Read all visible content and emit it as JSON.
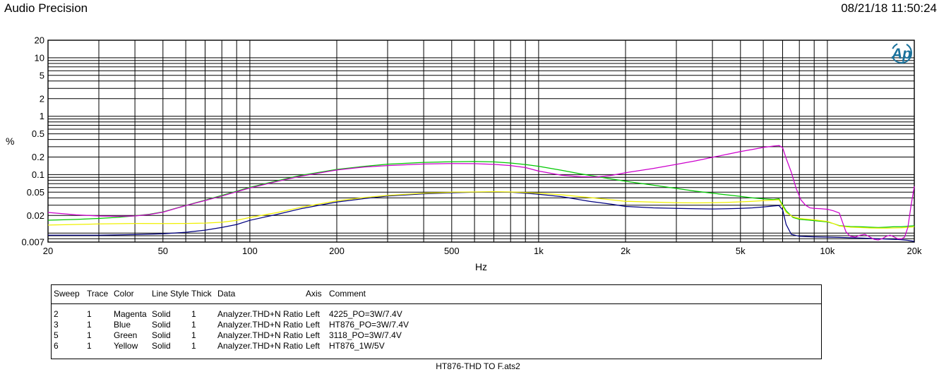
{
  "header": {
    "title": "Audio Precision",
    "timestamp": "08/21/18 11:50:24"
  },
  "footer": {
    "filename": "HT876-THD TO F.ats2"
  },
  "logo": {
    "text": "Ap",
    "color": "#19719b"
  },
  "chart_data": {
    "type": "line",
    "title": "",
    "xlabel": "Hz",
    "ylabel": "%",
    "x_axis": {
      "scale": "log",
      "min": 20,
      "max": 20000,
      "ticks": [
        {
          "v": 20,
          "t": "20"
        },
        {
          "v": 50,
          "t": "50"
        },
        {
          "v": 100,
          "t": "100"
        },
        {
          "v": 200,
          "t": "200"
        },
        {
          "v": 500,
          "t": "500"
        },
        {
          "v": 1000,
          "t": "1k"
        },
        {
          "v": 2000,
          "t": "2k"
        },
        {
          "v": 5000,
          "t": "5k"
        },
        {
          "v": 10000,
          "t": "10k"
        },
        {
          "v": 20000,
          "t": "20k"
        }
      ]
    },
    "y_axis": {
      "scale": "log",
      "min": 0.007,
      "max": 20,
      "ticks": [
        {
          "v": 20,
          "t": "20"
        },
        {
          "v": 10,
          "t": "10"
        },
        {
          "v": 5,
          "t": "5"
        },
        {
          "v": 2,
          "t": "2"
        },
        {
          "v": 1,
          "t": "1"
        },
        {
          "v": 0.5,
          "t": "0.5"
        },
        {
          "v": 0.2,
          "t": "0.2"
        },
        {
          "v": 0.1,
          "t": "0.1"
        },
        {
          "v": 0.05,
          "t": "0.05"
        },
        {
          "v": 0.02,
          "t": "0.02"
        },
        {
          "v": 0.007,
          "t": "0.007"
        }
      ]
    },
    "grid": true,
    "legend_position": "table-below",
    "series": [
      {
        "name": "3118_PO=3W/7.4V",
        "color_name": "Green",
        "hex": "#00c800",
        "points": [
          [
            20,
            0.0166
          ],
          [
            25,
            0.0171
          ],
          [
            30,
            0.0178
          ],
          [
            35,
            0.0186
          ],
          [
            40,
            0.0197
          ],
          [
            45,
            0.021
          ],
          [
            50,
            0.023
          ],
          [
            60,
            0.0297
          ],
          [
            70,
            0.0365
          ],
          [
            80,
            0.044
          ],
          [
            90,
            0.052
          ],
          [
            100,
            0.0605
          ],
          [
            125,
            0.079
          ],
          [
            150,
            0.097
          ],
          [
            175,
            0.11
          ],
          [
            200,
            0.123
          ],
          [
            250,
            0.139
          ],
          [
            300,
            0.151
          ],
          [
            400,
            0.162
          ],
          [
            500,
            0.166
          ],
          [
            600,
            0.168
          ],
          [
            700,
            0.165
          ],
          [
            800,
            0.158
          ],
          [
            900,
            0.149
          ],
          [
            1000,
            0.139
          ],
          [
            1200,
            0.119
          ],
          [
            1400,
            0.103
          ],
          [
            1600,
            0.092
          ],
          [
            1800,
            0.084
          ],
          [
            2000,
            0.077
          ],
          [
            2500,
            0.066
          ],
          [
            3000,
            0.058
          ],
          [
            3500,
            0.052
          ],
          [
            4000,
            0.048
          ],
          [
            4500,
            0.045
          ],
          [
            5000,
            0.0425
          ],
          [
            5500,
            0.04
          ],
          [
            6000,
            0.0385
          ],
          [
            6500,
            0.0375
          ],
          [
            6800,
            0.0385
          ],
          [
            7200,
            0.024
          ],
          [
            7600,
            0.0185
          ],
          [
            8000,
            0.0172
          ],
          [
            9000,
            0.0163
          ],
          [
            10000,
            0.0155
          ],
          [
            10500,
            0.0145
          ],
          [
            11000,
            0.0134
          ],
          [
            12000,
            0.0129
          ],
          [
            13000,
            0.0128
          ],
          [
            14000,
            0.0126
          ],
          [
            15000,
            0.0124
          ],
          [
            16000,
            0.0126
          ],
          [
            17000,
            0.0128
          ],
          [
            18000,
            0.0128
          ],
          [
            19000,
            0.0131
          ],
          [
            20000,
            0.0133
          ]
        ]
      },
      {
        "name": "HT876_PO=3W/7.4V",
        "color_name": "Blue",
        "hex": "#000080",
        "points": [
          [
            20,
            0.0092
          ],
          [
            30,
            0.0092
          ],
          [
            40,
            0.0094
          ],
          [
            50,
            0.0097
          ],
          [
            60,
            0.0103
          ],
          [
            70,
            0.0112
          ],
          [
            80,
            0.0125
          ],
          [
            90,
            0.014
          ],
          [
            100,
            0.0165
          ],
          [
            125,
            0.021
          ],
          [
            150,
            0.026
          ],
          [
            200,
            0.034
          ],
          [
            250,
            0.039
          ],
          [
            300,
            0.043
          ],
          [
            400,
            0.047
          ],
          [
            500,
            0.049
          ],
          [
            600,
            0.05
          ],
          [
            700,
            0.0505
          ],
          [
            800,
            0.05
          ],
          [
            900,
            0.048
          ],
          [
            1000,
            0.046
          ],
          [
            1200,
            0.042
          ],
          [
            1500,
            0.035
          ],
          [
            1800,
            0.031
          ],
          [
            2000,
            0.0285
          ],
          [
            2500,
            0.027
          ],
          [
            3000,
            0.0265
          ],
          [
            3500,
            0.026
          ],
          [
            4000,
            0.0258
          ],
          [
            4500,
            0.026
          ],
          [
            5000,
            0.0265
          ],
          [
            5500,
            0.027
          ],
          [
            6000,
            0.028
          ],
          [
            6500,
            0.029
          ],
          [
            6800,
            0.0295
          ],
          [
            7000,
            0.025
          ],
          [
            7200,
            0.014
          ],
          [
            7500,
            0.0095
          ],
          [
            8000,
            0.0088
          ],
          [
            9000,
            0.0086
          ],
          [
            10000,
            0.0085
          ],
          [
            11000,
            0.0084
          ],
          [
            12000,
            0.0083
          ],
          [
            13000,
            0.0082
          ],
          [
            14000,
            0.0081
          ],
          [
            15000,
            0.008
          ],
          [
            16000,
            0.0079
          ],
          [
            17000,
            0.0078
          ],
          [
            18000,
            0.0077
          ],
          [
            19000,
            0.0075
          ],
          [
            20000,
            0.0072
          ]
        ]
      },
      {
        "name": "HT876_1W/5V",
        "color_name": "Yellow",
        "hex": "#f0f000",
        "points": [
          [
            20,
            0.0137
          ],
          [
            30,
            0.0143
          ],
          [
            40,
            0.0146
          ],
          [
            50,
            0.0145
          ],
          [
            60,
            0.0146
          ],
          [
            70,
            0.0148
          ],
          [
            80,
            0.0153
          ],
          [
            90,
            0.0165
          ],
          [
            100,
            0.0185
          ],
          [
            125,
            0.0225
          ],
          [
            150,
            0.0275
          ],
          [
            200,
            0.0355
          ],
          [
            250,
            0.0405
          ],
          [
            300,
            0.044
          ],
          [
            400,
            0.048
          ],
          [
            500,
            0.05
          ],
          [
            600,
            0.0505
          ],
          [
            700,
            0.051
          ],
          [
            800,
            0.0505
          ],
          [
            900,
            0.0495
          ],
          [
            1000,
            0.048
          ],
          [
            1200,
            0.0452
          ],
          [
            1500,
            0.0405
          ],
          [
            1800,
            0.037
          ],
          [
            2000,
            0.035
          ],
          [
            2500,
            0.0338
          ],
          [
            3000,
            0.033
          ],
          [
            3500,
            0.0328
          ],
          [
            4000,
            0.033
          ],
          [
            4500,
            0.0335
          ],
          [
            5000,
            0.0342
          ],
          [
            5500,
            0.035
          ],
          [
            6000,
            0.0358
          ],
          [
            6500,
            0.0365
          ],
          [
            6800,
            0.0372
          ],
          [
            7200,
            0.0225
          ],
          [
            7600,
            0.019
          ],
          [
            8000,
            0.0178
          ],
          [
            9000,
            0.0168
          ],
          [
            10000,
            0.0158
          ],
          [
            10500,
            0.0145
          ],
          [
            11000,
            0.0132
          ],
          [
            12000,
            0.0126
          ],
          [
            13000,
            0.0124
          ],
          [
            14000,
            0.0122
          ],
          [
            15000,
            0.0121
          ],
          [
            16000,
            0.0121
          ],
          [
            17000,
            0.0122
          ],
          [
            18000,
            0.0123
          ],
          [
            19000,
            0.0125
          ],
          [
            20000,
            0.0128
          ]
        ]
      },
      {
        "name": "4225_PO=3W/7.4V",
        "color_name": "Magenta",
        "hex": "#cc00cc",
        "points": [
          [
            20,
            0.0225
          ],
          [
            25,
            0.0205
          ],
          [
            30,
            0.0196
          ],
          [
            35,
            0.0193
          ],
          [
            40,
            0.0196
          ],
          [
            45,
            0.0208
          ],
          [
            50,
            0.0228
          ],
          [
            60,
            0.0295
          ],
          [
            70,
            0.036
          ],
          [
            80,
            0.043
          ],
          [
            90,
            0.051
          ],
          [
            100,
            0.059
          ],
          [
            125,
            0.077
          ],
          [
            150,
            0.094
          ],
          [
            200,
            0.12
          ],
          [
            250,
            0.135
          ],
          [
            300,
            0.143
          ],
          [
            400,
            0.152
          ],
          [
            500,
            0.155
          ],
          [
            600,
            0.154
          ],
          [
            700,
            0.15
          ],
          [
            800,
            0.143
          ],
          [
            900,
            0.132
          ],
          [
            1000,
            0.115
          ],
          [
            1200,
            0.098
          ],
          [
            1400,
            0.092
          ],
          [
            1600,
            0.091
          ],
          [
            1800,
            0.098
          ],
          [
            2000,
            0.108
          ],
          [
            2500,
            0.128
          ],
          [
            3000,
            0.15
          ],
          [
            3500,
            0.172
          ],
          [
            4000,
            0.198
          ],
          [
            4500,
            0.223
          ],
          [
            5000,
            0.248
          ],
          [
            5500,
            0.27
          ],
          [
            6000,
            0.292
          ],
          [
            6500,
            0.308
          ],
          [
            6800,
            0.315
          ],
          [
            7000,
            0.29
          ],
          [
            7200,
            0.19
          ],
          [
            7500,
            0.11
          ],
          [
            7800,
            0.058
          ],
          [
            8100,
            0.037
          ],
          [
            8400,
            0.03
          ],
          [
            8700,
            0.027
          ],
          [
            9000,
            0.0265
          ],
          [
            9500,
            0.026
          ],
          [
            10000,
            0.0255
          ],
          [
            10500,
            0.024
          ],
          [
            11000,
            0.022
          ],
          [
            11300,
            0.015
          ],
          [
            11600,
            0.0105
          ],
          [
            12000,
            0.0088
          ],
          [
            12500,
            0.0085
          ],
          [
            13000,
            0.0092
          ],
          [
            13500,
            0.0095
          ],
          [
            14000,
            0.0086
          ],
          [
            14500,
            0.0078
          ],
          [
            15000,
            0.0076
          ],
          [
            15500,
            0.008
          ],
          [
            16000,
            0.0088
          ],
          [
            16500,
            0.0092
          ],
          [
            17000,
            0.0086
          ],
          [
            17500,
            0.008
          ],
          [
            18000,
            0.0079
          ],
          [
            18500,
            0.0085
          ],
          [
            19000,
            0.0125
          ],
          [
            19500,
            0.03
          ],
          [
            20000,
            0.063
          ]
        ]
      }
    ]
  },
  "table": {
    "columns": [
      "Sweep",
      "Trace",
      "Color",
      "Line Style",
      "Thick",
      "Data",
      "Axis",
      "Comment"
    ],
    "rows": [
      [
        "2",
        "1",
        "Magenta",
        "Solid",
        "1",
        "Analyzer.THD+N Ratio A",
        "Left",
        "4225_PO=3W/7.4V"
      ],
      [
        "3",
        "1",
        "Blue",
        "Solid",
        "1",
        "Analyzer.THD+N Ratio A",
        "Left",
        "HT876_PO=3W/7.4V"
      ],
      [
        "5",
        "1",
        "Green",
        "Solid",
        "1",
        "Analyzer.THD+N Ratio A",
        "Left",
        "3118_PO=3W/7.4V"
      ],
      [
        "6",
        "1",
        "Yellow",
        "Solid",
        "1",
        "Analyzer.THD+N Ratio A",
        "Left",
        "HT876_1W/5V"
      ]
    ]
  }
}
